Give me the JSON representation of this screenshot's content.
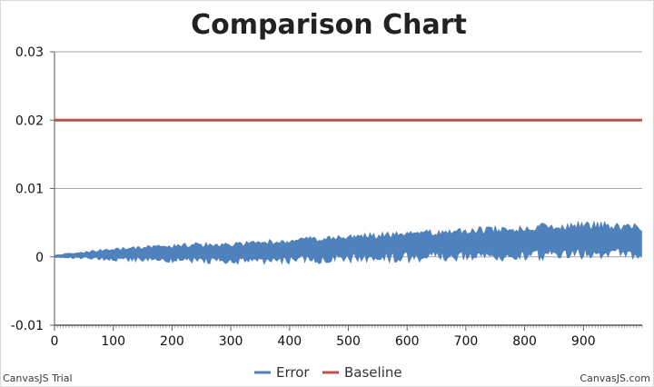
{
  "chart_data": {
    "type": "line",
    "title": "Comparison Chart",
    "xlabel": "",
    "ylabel": "",
    "xlim": [
      0,
      1000
    ],
    "ylim": [
      -0.01,
      0.03
    ],
    "x_ticks": [
      "0",
      "100",
      "200",
      "300",
      "400",
      "500",
      "600",
      "700",
      "800",
      "900"
    ],
    "y_ticks": [
      "-0.01",
      "0",
      "0.01",
      "0.02",
      "0.03"
    ],
    "grid": "horizontal",
    "legend_position": "bottom-center",
    "series": [
      {
        "name": "Error",
        "color": "#4f81bc",
        "chart_style": "noisy area around zero",
        "x": [
          0,
          20,
          40,
          60,
          80,
          100,
          120,
          140,
          160,
          180,
          200,
          220,
          240,
          260,
          280,
          300,
          320,
          340,
          360,
          380,
          400,
          420,
          440,
          460,
          480,
          500,
          520,
          540,
          560,
          580,
          600,
          620,
          640,
          660,
          680,
          700,
          720,
          740,
          760,
          780,
          800,
          820,
          840,
          860,
          880,
          900,
          920,
          940,
          960,
          980,
          1000
        ],
        "upper": [
          0.0003,
          0.0005,
          0.0007,
          0.0009,
          0.0011,
          0.0013,
          0.0014,
          0.0015,
          0.0017,
          0.0018,
          0.0019,
          0.002,
          0.0021,
          0.0021,
          0.0022,
          0.0022,
          0.0023,
          0.0024,
          0.0025,
          0.0026,
          0.0027,
          0.0029,
          0.003,
          0.0031,
          0.0032,
          0.0033,
          0.0034,
          0.0035,
          0.0036,
          0.0037,
          0.0038,
          0.0039,
          0.004,
          0.0041,
          0.0042,
          0.0043,
          0.0044,
          0.0045,
          0.0046,
          0.0047,
          0.0048,
          0.0049,
          0.005,
          0.005,
          0.0051,
          0.0052,
          0.0052,
          0.0051,
          0.005,
          0.0049,
          0.0048
        ],
        "lower": [
          -0.0001,
          -0.0002,
          -0.0003,
          -0.0004,
          -0.0005,
          -0.0006,
          -0.0007,
          -0.0007,
          -0.0008,
          -0.0008,
          -0.0009,
          -0.0009,
          -0.001,
          -0.001,
          -0.001,
          -0.0011,
          -0.0011,
          -0.0011,
          -0.0011,
          -0.0011,
          -0.0011,
          -0.001,
          -0.001,
          -0.001,
          -0.0009,
          -0.0009,
          -0.0009,
          -0.0009,
          -0.0008,
          -0.0008,
          -0.0008,
          -0.0008,
          -0.0007,
          -0.0007,
          -0.0007,
          -0.0007,
          -0.0006,
          -0.0006,
          -0.0006,
          -0.0005,
          -0.0005,
          -0.0005,
          -0.0004,
          -0.0004,
          -0.0004,
          -0.0004,
          -0.0003,
          -0.0003,
          -0.0003,
          -0.0003,
          -0.0002
        ],
        "center": [
          0.0001,
          0.0002,
          0.0003,
          0.0004,
          0.0005,
          0.0005,
          0.0006,
          0.0006,
          0.0007,
          0.0007,
          0.0007,
          0.0008,
          0.0008,
          0.0008,
          0.0008,
          0.0008,
          0.0009,
          0.001,
          0.001,
          0.0011,
          0.0012,
          0.0013,
          0.0014,
          0.0015,
          0.0016,
          0.0017,
          0.0018,
          0.0019,
          0.0019,
          0.002,
          0.0021,
          0.0021,
          0.0022,
          0.0023,
          0.0023,
          0.0024,
          0.0024,
          0.0025,
          0.0025,
          0.0026,
          0.0026,
          0.0027,
          0.0027,
          0.0027,
          0.0028,
          0.0028,
          0.0028,
          0.0028,
          0.0027,
          0.0027,
          0.0026
        ]
      },
      {
        "name": "Baseline",
        "color": "#c0504e",
        "x": [
          0,
          1000
        ],
        "values": [
          0.02,
          0.02
        ]
      }
    ]
  },
  "footer": {
    "left": "CanvasJS Trial",
    "right": "CanvasJS.com"
  }
}
